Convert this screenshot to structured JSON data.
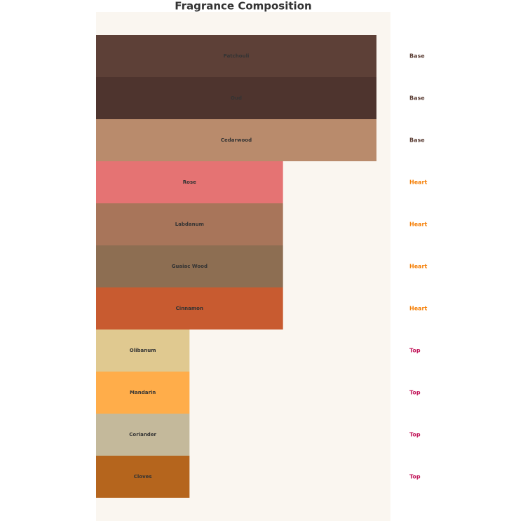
{
  "chart_data": {
    "type": "bar",
    "orientation": "horizontal",
    "title": "Fragrance Composition",
    "categories": [
      "Patchouli",
      "Oud",
      "Cedarwood",
      "Rose",
      "Labdanum",
      "Guaiac Wood",
      "Cinnamon",
      "Olibanum",
      "Mandarin",
      "Coriander",
      "Cloves"
    ],
    "values": [
      3,
      3,
      3,
      2,
      2,
      2,
      2,
      1,
      1,
      1,
      1
    ],
    "colors": [
      "#5d4037",
      "#4e342e",
      "#b98b6c",
      "#e57373",
      "#a8755a",
      "#8d6e52",
      "#c85b30",
      "#e0c990",
      "#ffad4a",
      "#c4b99b",
      "#b5651d"
    ],
    "notes": [
      "Base",
      "Base",
      "Base",
      "Heart",
      "Heart",
      "Heart",
      "Heart",
      "Top",
      "Top",
      "Top",
      "Top"
    ],
    "note_colors": {
      "Base": "#5d4037",
      "Heart": "#f57c00",
      "Top": "#c2185b"
    },
    "xlim": [
      0,
      3.15
    ]
  }
}
